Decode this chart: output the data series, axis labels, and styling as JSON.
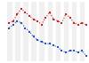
{
  "red_values": [
    30,
    31,
    35,
    38,
    36,
    34,
    32,
    31,
    29,
    33,
    36,
    32,
    31,
    30,
    35,
    33,
    30,
    29,
    30,
    29
  ],
  "blue_values": [
    27,
    29,
    31,
    30,
    27,
    25,
    22,
    20,
    19,
    18,
    18,
    17,
    16,
    14,
    13,
    14,
    14,
    13,
    14,
    11
  ],
  "red_color": "#cc2222",
  "blue_color": "#2255bb",
  "background_color": "#ffffff",
  "ylim": [
    8,
    42
  ],
  "grid_color": "#cccccc",
  "marker": "s",
  "markersize": 1.5,
  "linewidth": 0.8,
  "linestyle": "dotted"
}
